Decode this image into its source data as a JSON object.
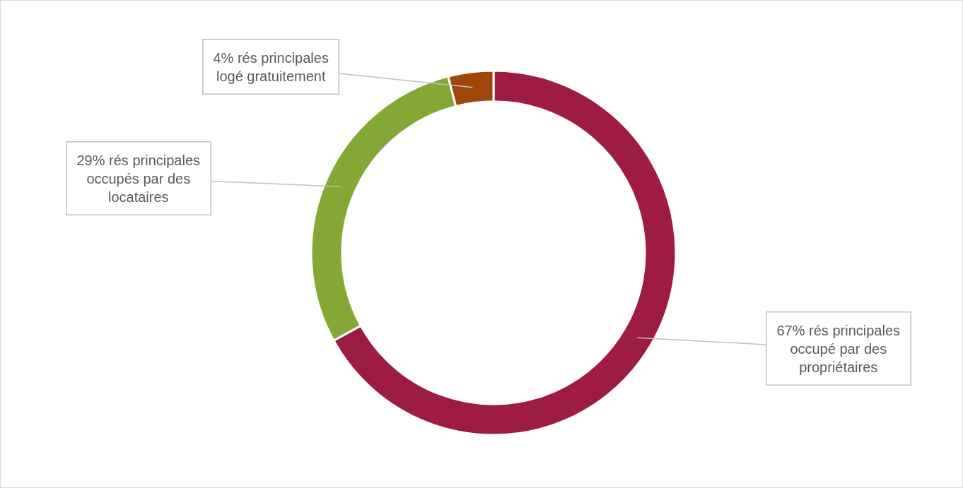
{
  "chart_data": {
    "type": "donut",
    "categories": [
      "67% rés principales occupé par des propriétaires",
      "29% rés principales occupés par des locataires",
      "4% rés principales logé gratuitement"
    ],
    "values": [
      67,
      29,
      4
    ],
    "colors": [
      "#9e1b42",
      "#84a835",
      "#a0460a"
    ]
  }
}
